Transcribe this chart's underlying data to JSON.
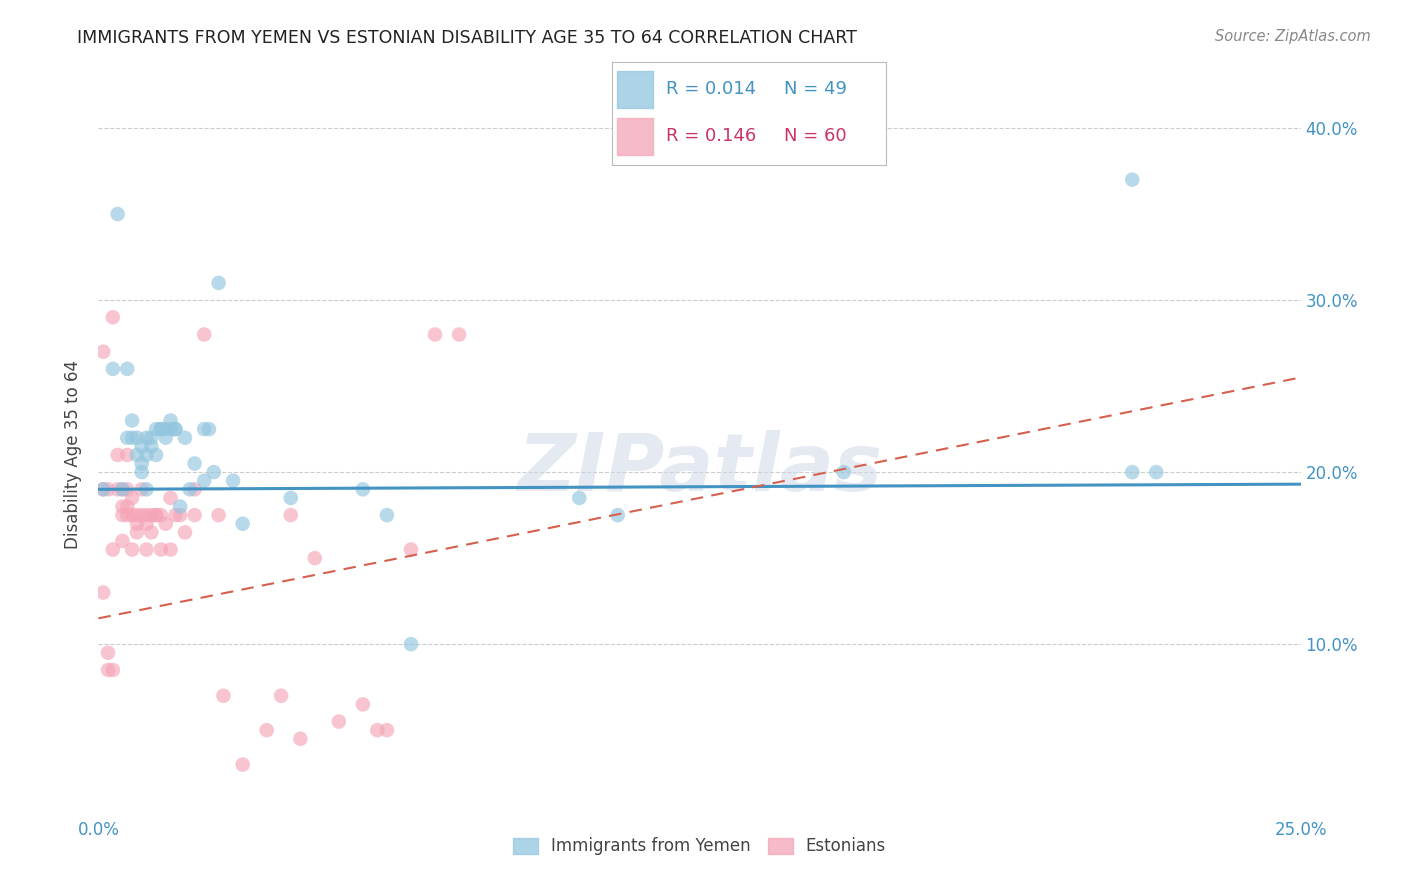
{
  "title": "IMMIGRANTS FROM YEMEN VS ESTONIAN DISABILITY AGE 35 TO 64 CORRELATION CHART",
  "source": "Source: ZipAtlas.com",
  "ylabel": "Disability Age 35 to 64",
  "xlim": [
    0.0,
    0.25
  ],
  "ylim": [
    0.0,
    0.42
  ],
  "xticks": [
    0.0,
    0.05,
    0.1,
    0.15,
    0.2,
    0.25
  ],
  "xticklabels": [
    "0.0%",
    "",
    "",
    "",
    "",
    "25.0%"
  ],
  "yticks": [
    0.1,
    0.2,
    0.3,
    0.4
  ],
  "yticklabels": [
    "10.0%",
    "20.0%",
    "30.0%",
    "40.0%"
  ],
  "legend_labels": [
    "Immigrants from Yemen",
    "Estonians"
  ],
  "legend_r": [
    "R = 0.014",
    "R = 0.146"
  ],
  "legend_n": [
    "N = 49",
    "N = 60"
  ],
  "blue_color": "#92c5de",
  "pink_color": "#f4a5b8",
  "blue_line_color": "#4393c3",
  "pink_line_color": "#d6604d",
  "grid_color": "#cccccc",
  "blue_scatter_x": [
    0.001,
    0.003,
    0.004,
    0.005,
    0.006,
    0.006,
    0.007,
    0.007,
    0.008,
    0.008,
    0.009,
    0.009,
    0.009,
    0.01,
    0.01,
    0.01,
    0.011,
    0.011,
    0.012,
    0.012,
    0.013,
    0.013,
    0.014,
    0.014,
    0.015,
    0.015,
    0.016,
    0.016,
    0.017,
    0.018,
    0.019,
    0.02,
    0.022,
    0.022,
    0.023,
    0.024,
    0.025,
    0.028,
    0.03,
    0.04,
    0.055,
    0.06,
    0.065,
    0.1,
    0.108,
    0.155,
    0.215,
    0.22,
    0.215
  ],
  "blue_scatter_y": [
    0.19,
    0.26,
    0.35,
    0.19,
    0.22,
    0.26,
    0.23,
    0.22,
    0.22,
    0.21,
    0.205,
    0.215,
    0.2,
    0.22,
    0.21,
    0.19,
    0.22,
    0.215,
    0.225,
    0.21,
    0.225,
    0.225,
    0.22,
    0.225,
    0.225,
    0.23,
    0.225,
    0.225,
    0.18,
    0.22,
    0.19,
    0.205,
    0.195,
    0.225,
    0.225,
    0.2,
    0.31,
    0.195,
    0.17,
    0.185,
    0.19,
    0.175,
    0.1,
    0.185,
    0.175,
    0.2,
    0.37,
    0.2,
    0.2
  ],
  "pink_scatter_x": [
    0.001,
    0.001,
    0.001,
    0.002,
    0.002,
    0.002,
    0.003,
    0.003,
    0.003,
    0.004,
    0.004,
    0.005,
    0.005,
    0.005,
    0.005,
    0.006,
    0.006,
    0.006,
    0.006,
    0.007,
    0.007,
    0.007,
    0.008,
    0.008,
    0.008,
    0.009,
    0.009,
    0.01,
    0.01,
    0.01,
    0.011,
    0.011,
    0.012,
    0.012,
    0.013,
    0.013,
    0.014,
    0.015,
    0.015,
    0.016,
    0.017,
    0.018,
    0.02,
    0.02,
    0.022,
    0.025,
    0.026,
    0.03,
    0.035,
    0.038,
    0.04,
    0.042,
    0.045,
    0.05,
    0.055,
    0.058,
    0.06,
    0.065,
    0.07,
    0.075
  ],
  "pink_scatter_y": [
    0.27,
    0.19,
    0.13,
    0.095,
    0.085,
    0.19,
    0.29,
    0.155,
    0.085,
    0.21,
    0.19,
    0.18,
    0.175,
    0.16,
    0.19,
    0.175,
    0.19,
    0.18,
    0.21,
    0.175,
    0.185,
    0.155,
    0.175,
    0.17,
    0.165,
    0.175,
    0.19,
    0.155,
    0.175,
    0.17,
    0.165,
    0.175,
    0.175,
    0.175,
    0.155,
    0.175,
    0.17,
    0.155,
    0.185,
    0.175,
    0.175,
    0.165,
    0.19,
    0.175,
    0.28,
    0.175,
    0.07,
    0.03,
    0.05,
    0.07,
    0.175,
    0.045,
    0.15,
    0.055,
    0.065,
    0.05,
    0.05,
    0.155,
    0.28,
    0.28
  ],
  "blue_line_x": [
    0.0,
    0.25
  ],
  "blue_line_y": [
    0.19,
    0.193
  ],
  "pink_line_x": [
    0.0,
    0.25
  ],
  "pink_line_y": [
    0.115,
    0.255
  ],
  "watermark": "ZIPatlas",
  "figsize": [
    14.06,
    8.92
  ],
  "dpi": 100
}
